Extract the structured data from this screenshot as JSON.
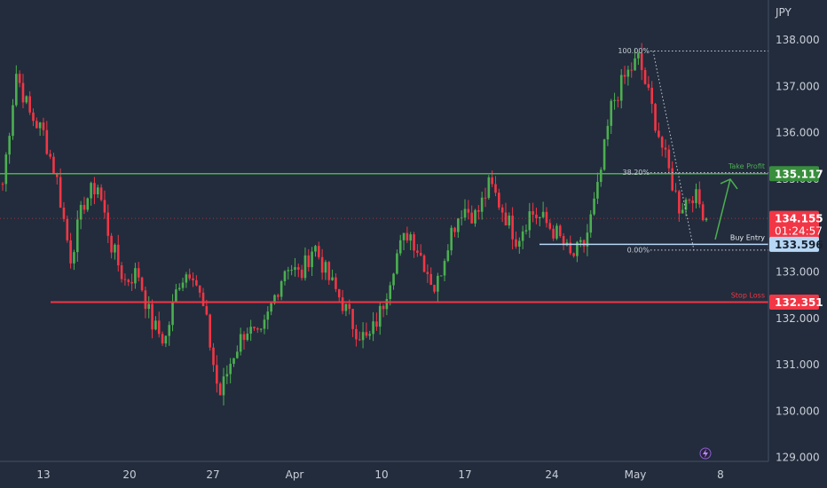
{
  "chart_data": {
    "type": "candlestick",
    "currency": "JPY",
    "ylim": [
      129.0,
      138.6
    ],
    "y_ticks": [
      "138.000",
      "137.000",
      "136.000",
      "135.000",
      "134.000",
      "133.000",
      "132.000",
      "131.000",
      "130.000",
      "129.000"
    ],
    "x_ticks": [
      "13",
      "20",
      "27",
      "Apr",
      "10",
      "17",
      "24",
      "May",
      "8"
    ],
    "levels": {
      "take_profit": {
        "label": "Take Profit",
        "value": 135.117,
        "value_text": "135.117",
        "color": "#4caf50"
      },
      "stop_loss": {
        "label": "Stop Loss",
        "value": 132.351,
        "value_text": "132.351",
        "color": "#f23645"
      },
      "buy_entry": {
        "label": "Buy Entry",
        "value": 133.596,
        "value_text": "133.596",
        "color": "#b7d7f5"
      },
      "current": {
        "value": 134.155,
        "value_text": "134.155",
        "countdown": "01:24:57",
        "color": "#f23645"
      }
    },
    "fibonacci": [
      {
        "label": "100.00%",
        "value": 137.76
      },
      {
        "label": "38.20%",
        "value": 135.14
      },
      {
        "label": "0.00%",
        "value": 133.47
      }
    ],
    "close_path": [
      134.9,
      137.3,
      136.4,
      136.0,
      135.0,
      133.3,
      134.5,
      134.9,
      133.6,
      132.8,
      133.0,
      131.9,
      131.5,
      132.8,
      133.1,
      132.0,
      130.3,
      131.2,
      131.8,
      131.5,
      132.4,
      133.2,
      132.9,
      133.6,
      132.9,
      132.4,
      131.8,
      131.5,
      132.2,
      133.3,
      133.9,
      133.3,
      132.6,
      133.8,
      134.4,
      134.2,
      134.9,
      134.3,
      133.7,
      134.3,
      134.1,
      133.8,
      133.3,
      133.6,
      134.8,
      136.6,
      137.2,
      137.6,
      136.5,
      135.4,
      134.4,
      134.7,
      134.2
    ],
    "colors": {
      "up": "#4caf50",
      "down": "#f23645"
    }
  }
}
